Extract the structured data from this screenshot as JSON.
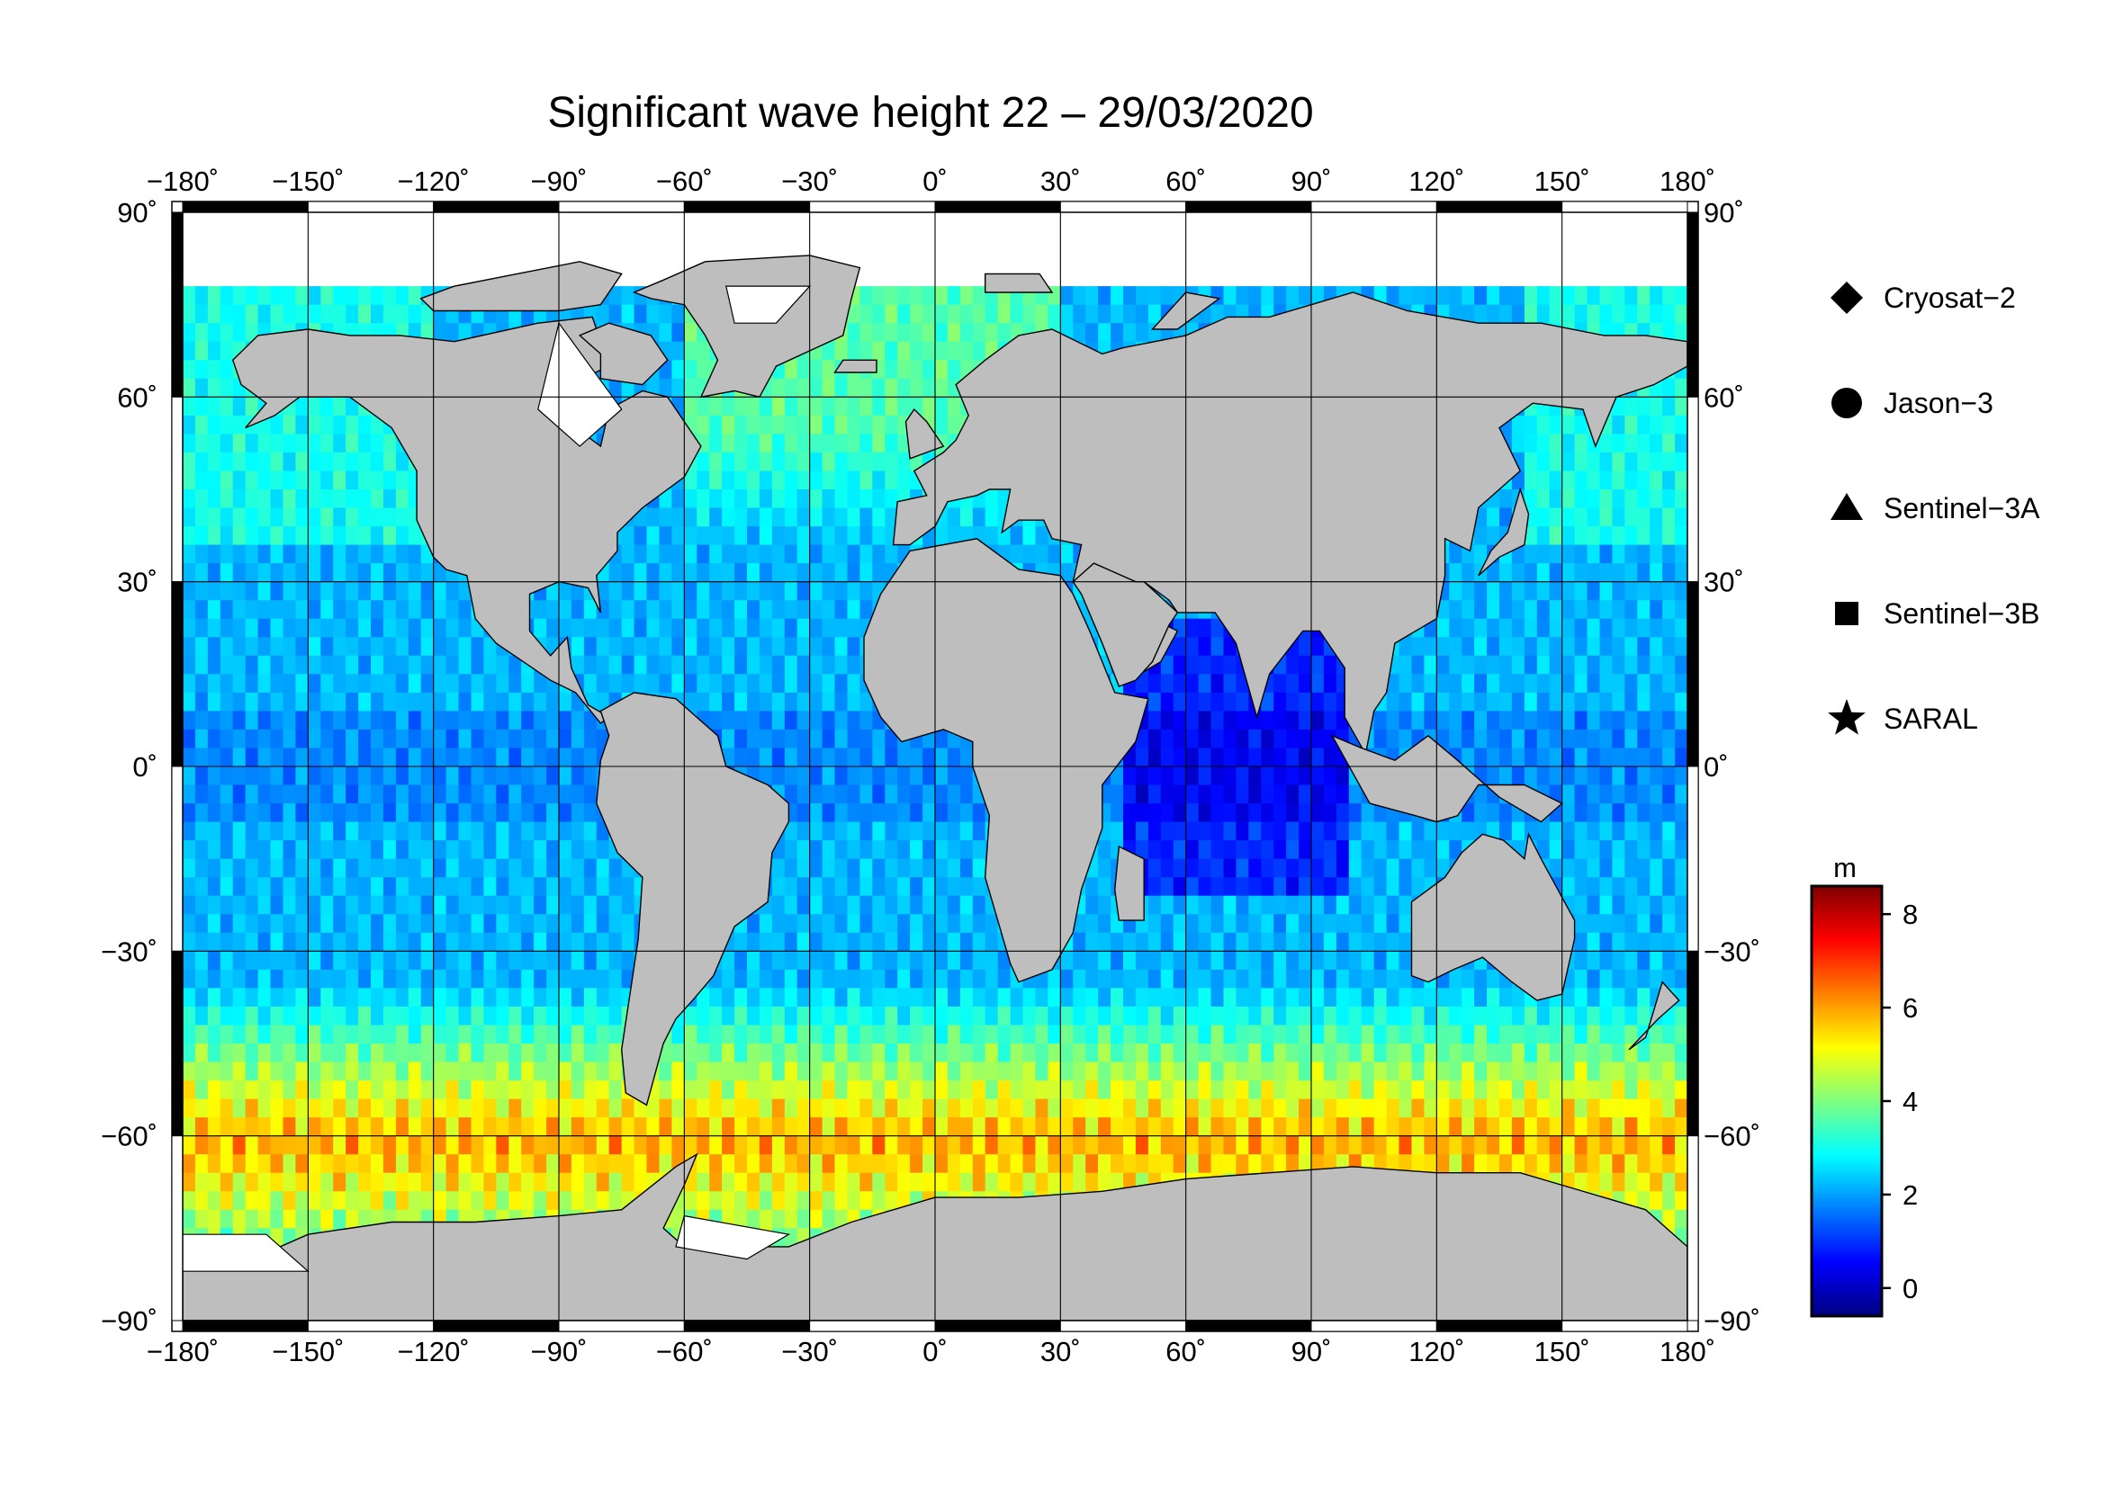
{
  "title": "Significant wave height 22 – 29/03/2020",
  "map": {
    "lon_range": [
      -180,
      180
    ],
    "lat_range": [
      -90,
      90
    ],
    "lon_ticks": [
      {
        "value": -180,
        "label": "−180˚"
      },
      {
        "value": -150,
        "label": "−150˚"
      },
      {
        "value": -120,
        "label": "−120˚"
      },
      {
        "value": -90,
        "label": "−90˚"
      },
      {
        "value": -60,
        "label": "−60˚"
      },
      {
        "value": -30,
        "label": "−30˚"
      },
      {
        "value": 0,
        "label": "0˚"
      },
      {
        "value": 30,
        "label": "30˚"
      },
      {
        "value": 60,
        "label": "60˚"
      },
      {
        "value": 90,
        "label": "90˚"
      },
      {
        "value": 120,
        "label": "120˚"
      },
      {
        "value": 150,
        "label": "150˚"
      },
      {
        "value": 180,
        "label": "180˚"
      }
    ],
    "lat_ticks": [
      {
        "value": 90,
        "label": "90˚"
      },
      {
        "value": 60,
        "label": "60˚"
      },
      {
        "value": 30,
        "label": "30˚"
      },
      {
        "value": 0,
        "label": "0˚"
      },
      {
        "value": -30,
        "label": "−30˚"
      },
      {
        "value": -60,
        "label": "−60˚"
      },
      {
        "value": -90,
        "label": "−90˚"
      }
    ],
    "land_color": "#bebebe",
    "ice_color": "#ffffff",
    "grid": true
  },
  "legend": {
    "items": [
      {
        "label": "Cryosat−2",
        "icon": "diamond-icon"
      },
      {
        "label": "Jason−3",
        "icon": "circle-icon"
      },
      {
        "label": "Sentinel−3A",
        "icon": "triangle-icon"
      },
      {
        "label": "Sentinel−3B",
        "icon": "square-icon"
      },
      {
        "label": "SARAL",
        "icon": "star-icon"
      }
    ]
  },
  "colorbar": {
    "unit": "m",
    "min": -0.6,
    "max": 8.6,
    "ticks": [
      {
        "value": 0,
        "label": "0"
      },
      {
        "value": 2,
        "label": "2"
      },
      {
        "value": 4,
        "label": "4"
      },
      {
        "value": 6,
        "label": "6"
      },
      {
        "value": 8,
        "label": "8"
      }
    ],
    "colors": [
      "#00007f",
      "#0000ff",
      "#007fff",
      "#00ffff",
      "#7fff7f",
      "#ffff00",
      "#ff7f00",
      "#ff0000",
      "#7f0000"
    ]
  }
}
